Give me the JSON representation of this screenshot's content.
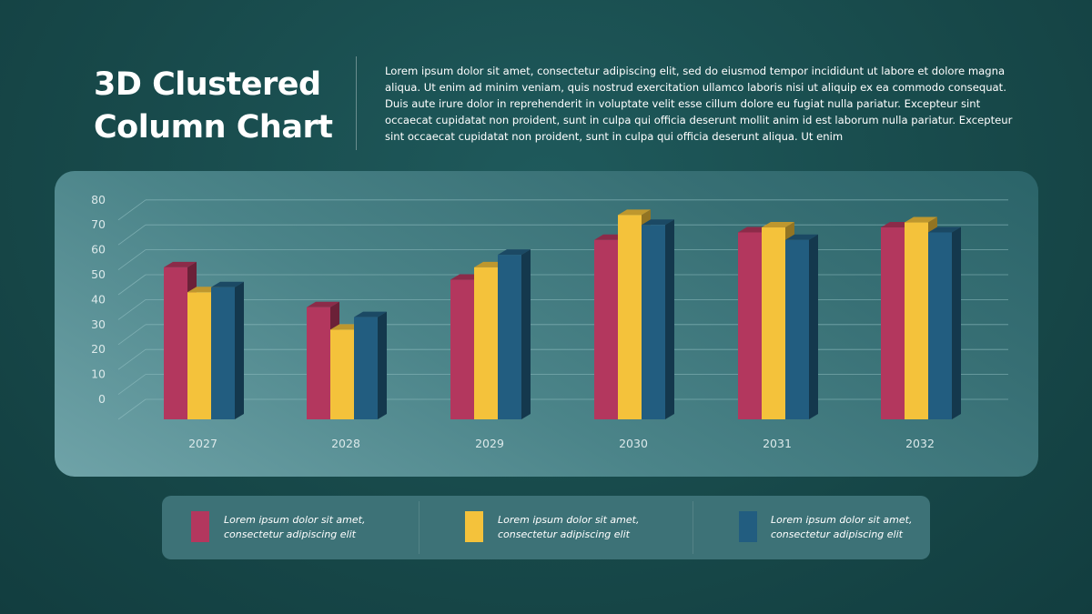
{
  "slide": {
    "title_line1": "3D Clustered",
    "title_line2": "Column Chart",
    "description": "Lorem ipsum dolor sit amet, consectetur adipiscing elit, sed do eiusmod tempor incididunt ut labore et dolore magna aliqua. Ut enim ad minim veniam, quis nostrud exercitation ullamco laboris nisi ut aliquip ex ea commodo consequat. Duis aute irure dolor in reprehenderit in voluptate velit esse cillum dolore eu fugiat nulla pariatur. Excepteur sint occaecat cupidatat non proident, sunt in culpa qui officia deserunt mollit anim id est laborum nulla pariatur. Excepteur sint occaecat cupidatat non proident, sunt in culpa qui officia deserunt aliqua. Ut enim"
  },
  "colors": {
    "series": [
      "#b3375e",
      "#f4c23b",
      "#225d80"
    ],
    "axis_text": "#dbe9ea",
    "gridline": "#8fbcbf"
  },
  "legend": [
    {
      "line1": "Lorem ipsum dolor sit amet,",
      "line2": "consectetur adipiscing elit"
    },
    {
      "line1": "Lorem ipsum dolor sit amet,",
      "line2": "consectetur adipiscing elit"
    },
    {
      "line1": "Lorem ipsum dolor sit amet,",
      "line2": "consectetur adipiscing elit"
    }
  ],
  "chart_data": {
    "type": "bar",
    "categories": [
      "2027",
      "2028",
      "2029",
      "2030",
      "2031",
      "2032"
    ],
    "series": [
      {
        "values": [
          61,
          45,
          56,
          72,
          75,
          77
        ]
      },
      {
        "values": [
          51,
          36,
          61,
          82,
          77,
          79
        ]
      },
      {
        "values": [
          53,
          41,
          66,
          78,
          72,
          75
        ]
      }
    ],
    "yticks": [
      0,
      10,
      20,
      30,
      40,
      50,
      60,
      70,
      80
    ],
    "ylim": [
      0,
      80
    ],
    "grid": true,
    "legend_position": "bottom"
  }
}
